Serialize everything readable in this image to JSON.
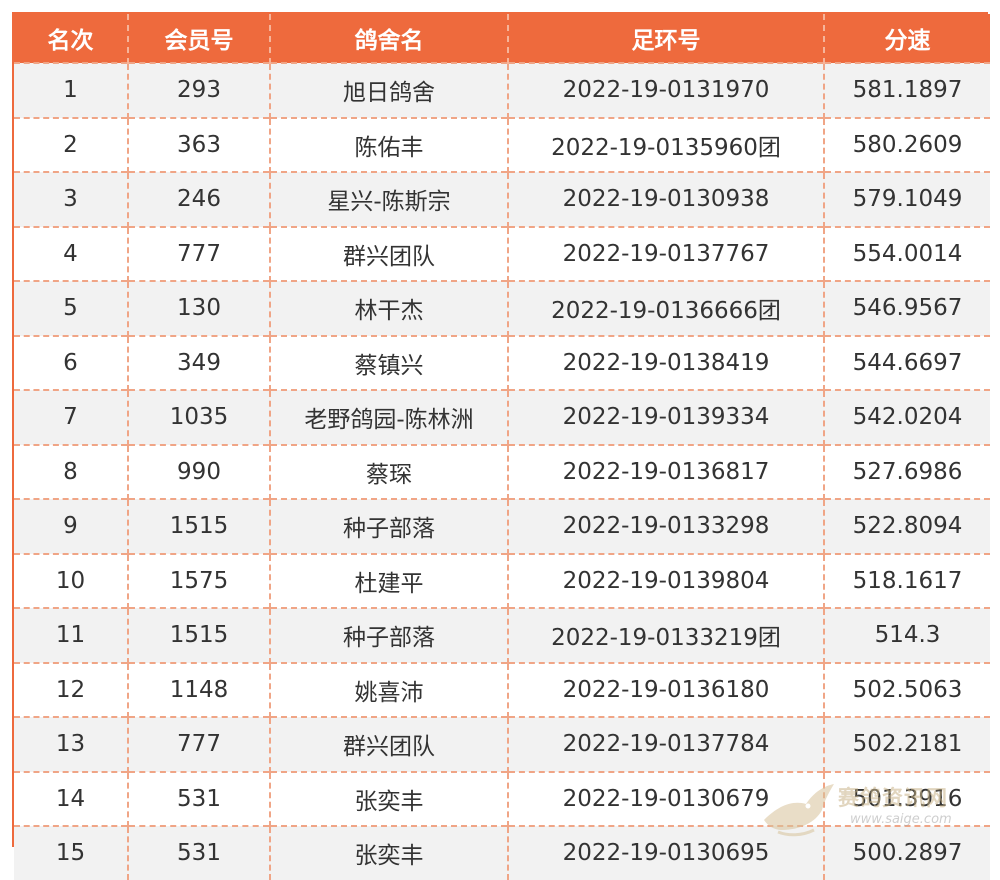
{
  "table": {
    "headers": [
      "名次",
      "会员号",
      "鸽舍名",
      "足环号",
      "分速"
    ],
    "rows": [
      [
        "1",
        "293",
        "旭日鸽舍",
        "2022-19-0131970",
        "581.1897"
      ],
      [
        "2",
        "363",
        "陈佑丰",
        "2022-19-0135960团",
        "580.2609"
      ],
      [
        "3",
        "246",
        "星兴-陈斯宗",
        "2022-19-0130938",
        "579.1049"
      ],
      [
        "4",
        "777",
        "群兴团队",
        "2022-19-0137767",
        "554.0014"
      ],
      [
        "5",
        "130",
        "林干杰",
        "2022-19-0136666团",
        "546.9567"
      ],
      [
        "6",
        "349",
        "蔡镇兴",
        "2022-19-0138419",
        "544.6697"
      ],
      [
        "7",
        "1035",
        "老野鸽园-陈林洲",
        "2022-19-0139334",
        "542.0204"
      ],
      [
        "8",
        "990",
        "蔡琛",
        "2022-19-0136817",
        "527.6986"
      ],
      [
        "9",
        "1515",
        "种子部落",
        "2022-19-0133298",
        "522.8094"
      ],
      [
        "10",
        "1575",
        "杜建平",
        "2022-19-0139804",
        "518.1617"
      ],
      [
        "11",
        "1515",
        "种子部落",
        "2022-19-0133219团",
        "514.3"
      ],
      [
        "12",
        "1148",
        "姚喜沛",
        "2022-19-0136180",
        "502.5063"
      ],
      [
        "13",
        "777",
        "群兴团队",
        "2022-19-0137784",
        "502.2181"
      ],
      [
        "14",
        "531",
        "张奕丰",
        "2022-19-0130679",
        "501.3916"
      ],
      [
        "15",
        "531",
        "张奕丰",
        "2022-19-0130695",
        "500.2897"
      ]
    ]
  },
  "watermark": {
    "title": "赛鸽资讯网",
    "url": "www.saige.com"
  },
  "colors": {
    "header_bg": "#ee6a3d",
    "header_text": "#ffffff",
    "row_alt_bg": "#f2f2f2",
    "grid_line": "#f0a586",
    "text": "#333333"
  }
}
